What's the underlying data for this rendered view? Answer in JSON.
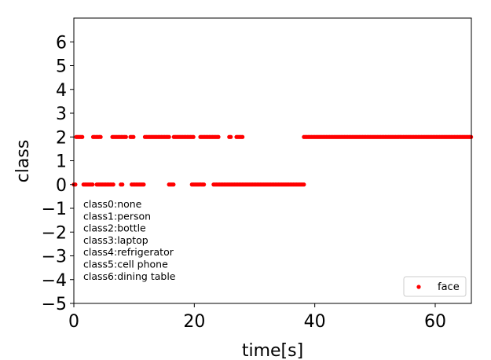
{
  "chart_data": {
    "type": "scatter",
    "title": "",
    "xlabel": "time[s]",
    "ylabel": "class",
    "xlim": [
      0,
      66
    ],
    "ylim": [
      -5,
      7
    ],
    "xticks": [
      "0",
      "20",
      "40",
      "60"
    ],
    "yticks": [
      "−5",
      "−4",
      "−3",
      "−2",
      "−1",
      "0",
      "1",
      "2",
      "3",
      "4",
      "5",
      "6"
    ],
    "grid": false,
    "legend_position": "bottom-right",
    "color": "#ff0000",
    "annotations": [
      "class0:none",
      "class1:person",
      "class2:bottle",
      "class3:laptop",
      "class4:refrigerator",
      "class5:cell phone",
      "class6:dining table"
    ],
    "series": [
      {
        "name": "face",
        "y_values": [
          2,
          0
        ],
        "segments_class2": [
          [
            0.4,
            1.6
          ],
          [
            3.2,
            4.6
          ],
          [
            6.4,
            8.8
          ],
          [
            9.4,
            10.0
          ],
          [
            11.8,
            15.8
          ],
          [
            16.6,
            20.0
          ],
          [
            21.0,
            24.0
          ],
          [
            25.8,
            26.2
          ],
          [
            27.0,
            28.2
          ],
          [
            38.2,
            66.0
          ]
        ],
        "segments_class0": [
          [
            0.0,
            0.4
          ],
          [
            1.6,
            3.2
          ],
          [
            3.8,
            6.6
          ],
          [
            7.8,
            8.2
          ],
          [
            9.6,
            11.8
          ],
          [
            15.8,
            16.6
          ],
          [
            19.6,
            21.6
          ],
          [
            23.2,
            38.2
          ]
        ]
      }
    ]
  }
}
